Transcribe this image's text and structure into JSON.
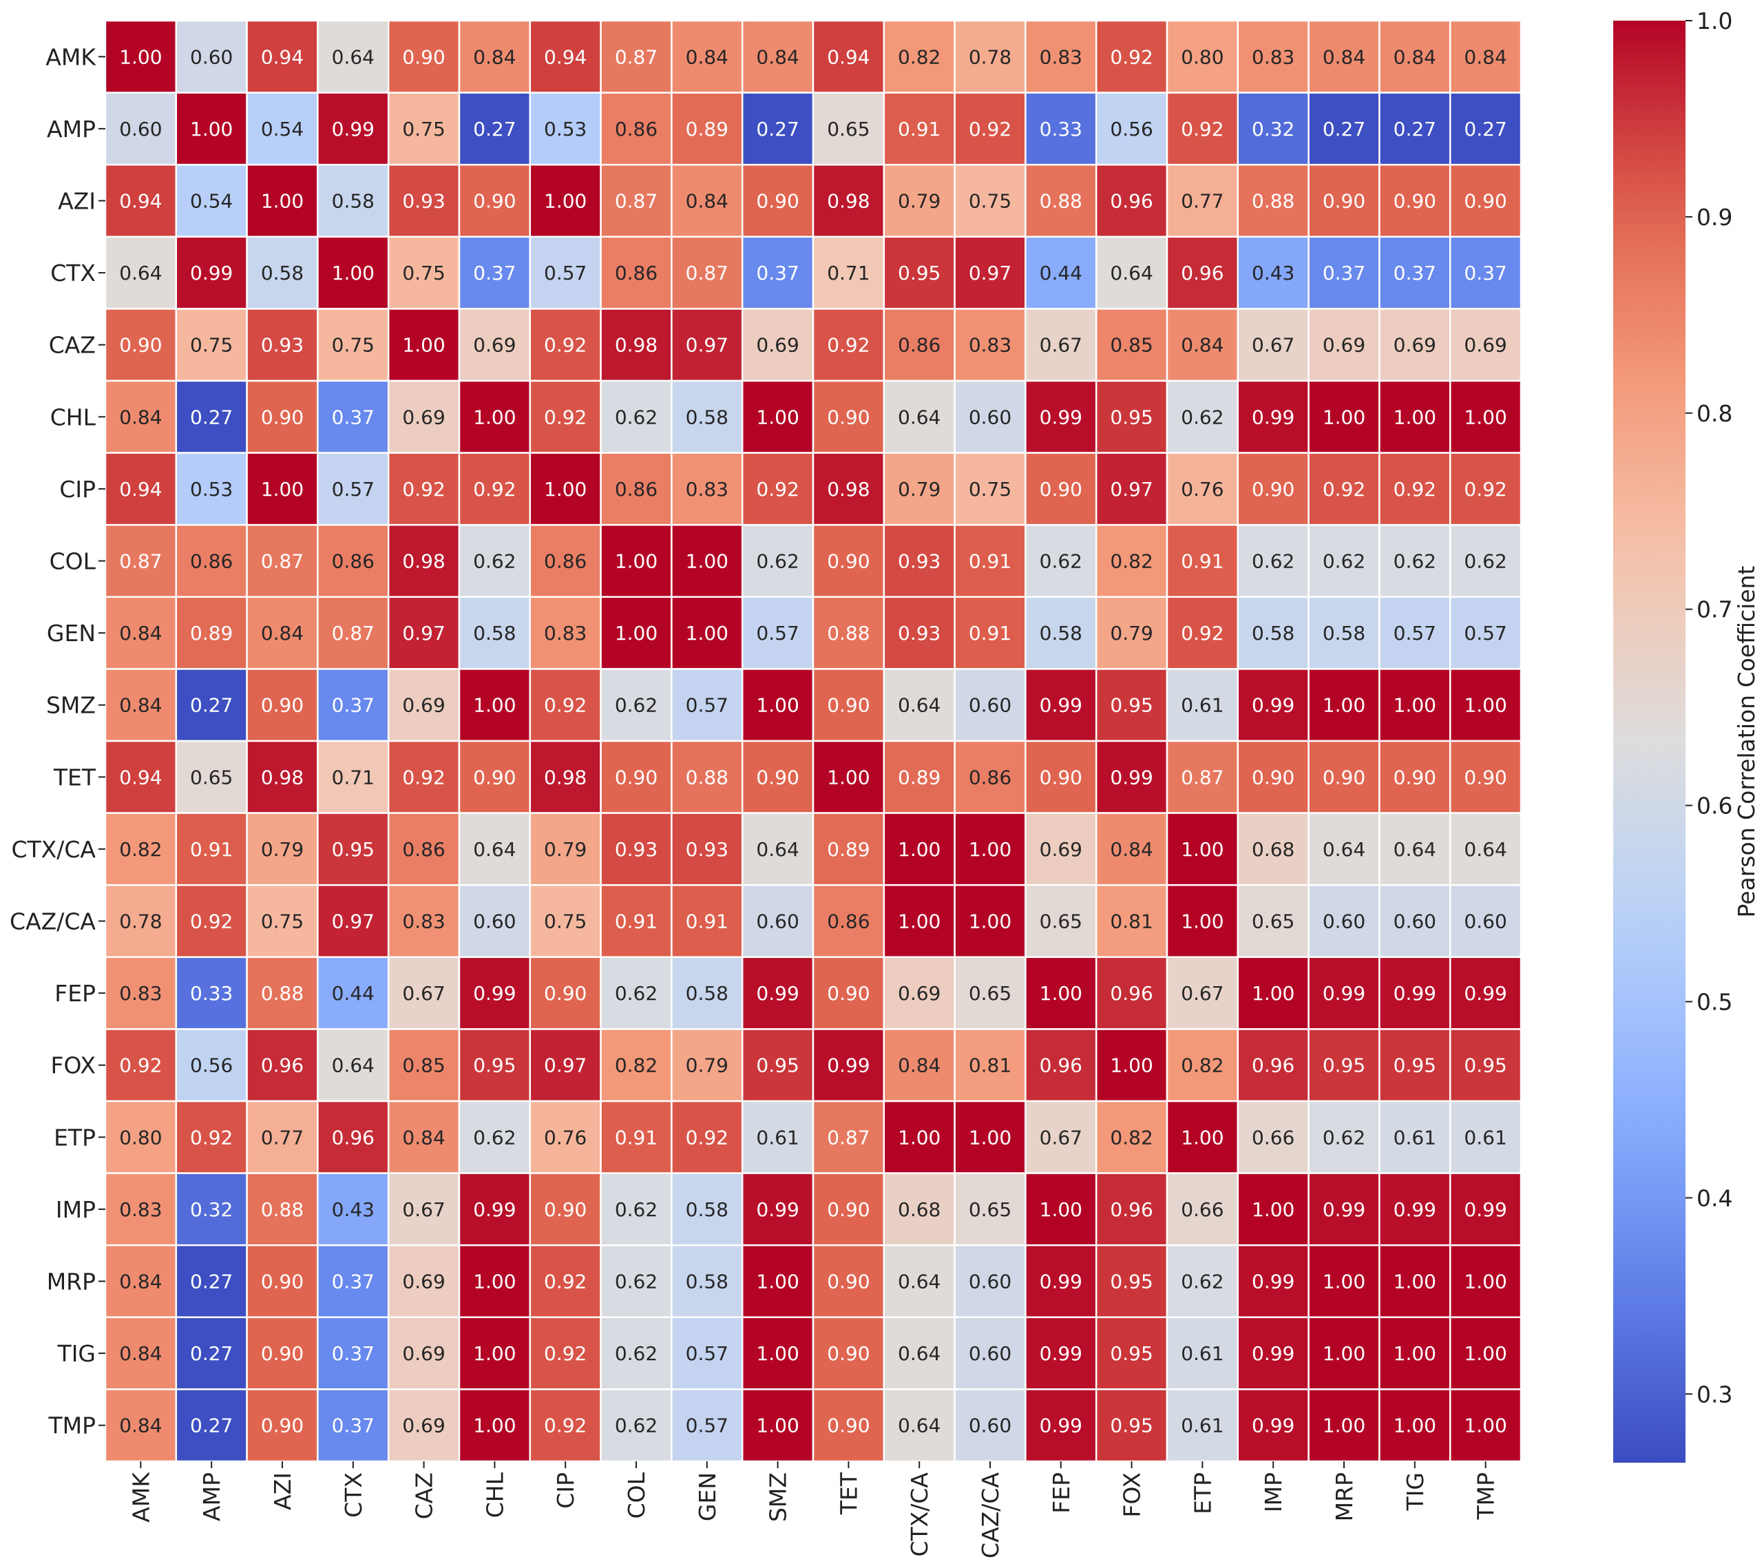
{
  "chart_data": {
    "type": "heatmap",
    "row_labels": [
      "AMK",
      "AMP",
      "AZI",
      "CTX",
      "CAZ",
      "CHL",
      "CIP",
      "COL",
      "GEN",
      "SMZ",
      "TET",
      "CTX/CA",
      "CAZ/CA",
      "FEP",
      "FOX",
      "ETP",
      "IMP",
      "MRP",
      "TIG",
      "TMP"
    ],
    "col_labels": [
      "AMK",
      "AMP",
      "AZI",
      "CTX",
      "CAZ",
      "CHL",
      "CIP",
      "COL",
      "GEN",
      "SMZ",
      "TET",
      "CTX/CA",
      "CAZ/CA",
      "FEP",
      "FOX",
      "ETP",
      "IMP",
      "MRP",
      "TIG",
      "TMP"
    ],
    "values": [
      [
        1.0,
        0.6,
        0.94,
        0.64,
        0.9,
        0.84,
        0.94,
        0.87,
        0.84,
        0.84,
        0.94,
        0.82,
        0.78,
        0.83,
        0.92,
        0.8,
        0.83,
        0.84,
        0.84,
        0.84
      ],
      [
        0.6,
        1.0,
        0.54,
        0.99,
        0.75,
        0.27,
        0.53,
        0.86,
        0.89,
        0.27,
        0.65,
        0.91,
        0.92,
        0.33,
        0.56,
        0.92,
        0.32,
        0.27,
        0.27,
        0.27
      ],
      [
        0.94,
        0.54,
        1.0,
        0.58,
        0.93,
        0.9,
        1.0,
        0.87,
        0.84,
        0.9,
        0.98,
        0.79,
        0.75,
        0.88,
        0.96,
        0.77,
        0.88,
        0.9,
        0.9,
        0.9
      ],
      [
        0.64,
        0.99,
        0.58,
        1.0,
        0.75,
        0.37,
        0.57,
        0.86,
        0.87,
        0.37,
        0.71,
        0.95,
        0.97,
        0.44,
        0.64,
        0.96,
        0.43,
        0.37,
        0.37,
        0.37
      ],
      [
        0.9,
        0.75,
        0.93,
        0.75,
        1.0,
        0.69,
        0.92,
        0.98,
        0.97,
        0.69,
        0.92,
        0.86,
        0.83,
        0.67,
        0.85,
        0.84,
        0.67,
        0.69,
        0.69,
        0.69
      ],
      [
        0.84,
        0.27,
        0.9,
        0.37,
        0.69,
        1.0,
        0.92,
        0.62,
        0.58,
        1.0,
        0.9,
        0.64,
        0.6,
        0.99,
        0.95,
        0.62,
        0.99,
        1.0,
        1.0,
        1.0
      ],
      [
        0.94,
        0.53,
        1.0,
        0.57,
        0.92,
        0.92,
        1.0,
        0.86,
        0.83,
        0.92,
        0.98,
        0.79,
        0.75,
        0.9,
        0.97,
        0.76,
        0.9,
        0.92,
        0.92,
        0.92
      ],
      [
        0.87,
        0.86,
        0.87,
        0.86,
        0.98,
        0.62,
        0.86,
        1.0,
        1.0,
        0.62,
        0.9,
        0.93,
        0.91,
        0.62,
        0.82,
        0.91,
        0.62,
        0.62,
        0.62,
        0.62
      ],
      [
        0.84,
        0.89,
        0.84,
        0.87,
        0.97,
        0.58,
        0.83,
        1.0,
        1.0,
        0.57,
        0.88,
        0.93,
        0.91,
        0.58,
        0.79,
        0.92,
        0.58,
        0.58,
        0.57,
        0.57
      ],
      [
        0.84,
        0.27,
        0.9,
        0.37,
        0.69,
        1.0,
        0.92,
        0.62,
        0.57,
        1.0,
        0.9,
        0.64,
        0.6,
        0.99,
        0.95,
        0.61,
        0.99,
        1.0,
        1.0,
        1.0
      ],
      [
        0.94,
        0.65,
        0.98,
        0.71,
        0.92,
        0.9,
        0.98,
        0.9,
        0.88,
        0.9,
        1.0,
        0.89,
        0.86,
        0.9,
        0.99,
        0.87,
        0.9,
        0.9,
        0.9,
        0.9
      ],
      [
        0.82,
        0.91,
        0.79,
        0.95,
        0.86,
        0.64,
        0.79,
        0.93,
        0.93,
        0.64,
        0.89,
        1.0,
        1.0,
        0.69,
        0.84,
        1.0,
        0.68,
        0.64,
        0.64,
        0.64
      ],
      [
        0.78,
        0.92,
        0.75,
        0.97,
        0.83,
        0.6,
        0.75,
        0.91,
        0.91,
        0.6,
        0.86,
        1.0,
        1.0,
        0.65,
        0.81,
        1.0,
        0.65,
        0.6,
        0.6,
        0.6
      ],
      [
        0.83,
        0.33,
        0.88,
        0.44,
        0.67,
        0.99,
        0.9,
        0.62,
        0.58,
        0.99,
        0.9,
        0.69,
        0.65,
        1.0,
        0.96,
        0.67,
        1.0,
        0.99,
        0.99,
        0.99
      ],
      [
        0.92,
        0.56,
        0.96,
        0.64,
        0.85,
        0.95,
        0.97,
        0.82,
        0.79,
        0.95,
        0.99,
        0.84,
        0.81,
        0.96,
        1.0,
        0.82,
        0.96,
        0.95,
        0.95,
        0.95
      ],
      [
        0.8,
        0.92,
        0.77,
        0.96,
        0.84,
        0.62,
        0.76,
        0.91,
        0.92,
        0.61,
        0.87,
        1.0,
        1.0,
        0.67,
        0.82,
        1.0,
        0.66,
        0.62,
        0.61,
        0.61
      ],
      [
        0.83,
        0.32,
        0.88,
        0.43,
        0.67,
        0.99,
        0.9,
        0.62,
        0.58,
        0.99,
        0.9,
        0.68,
        0.65,
        1.0,
        0.96,
        0.66,
        1.0,
        0.99,
        0.99,
        0.99
      ],
      [
        0.84,
        0.27,
        0.9,
        0.37,
        0.69,
        1.0,
        0.92,
        0.62,
        0.58,
        1.0,
        0.9,
        0.64,
        0.6,
        0.99,
        0.95,
        0.62,
        0.99,
        1.0,
        1.0,
        1.0
      ],
      [
        0.84,
        0.27,
        0.9,
        0.37,
        0.69,
        1.0,
        0.92,
        0.62,
        0.57,
        1.0,
        0.9,
        0.64,
        0.6,
        0.99,
        0.95,
        0.61,
        0.99,
        1.0,
        1.0,
        1.0
      ],
      [
        0.84,
        0.27,
        0.9,
        0.37,
        0.69,
        1.0,
        0.92,
        0.62,
        0.57,
        1.0,
        0.9,
        0.64,
        0.6,
        0.99,
        0.95,
        0.61,
        0.99,
        1.0,
        1.0,
        1.0
      ]
    ],
    "colormap": "coolwarm",
    "vmin": 0.265,
    "vmax": 1.0,
    "annotation_format": "0.00",
    "colorbar": {
      "label": "Pearson Correlation Coefficient",
      "ticks": [
        0.3,
        0.4,
        0.5,
        0.6,
        0.7,
        0.8,
        0.9,
        1.0
      ],
      "tick_labels": [
        "0.3",
        "0.4",
        "0.5",
        "0.6",
        "0.7",
        "0.8",
        "0.9",
        "1.0"
      ]
    }
  }
}
